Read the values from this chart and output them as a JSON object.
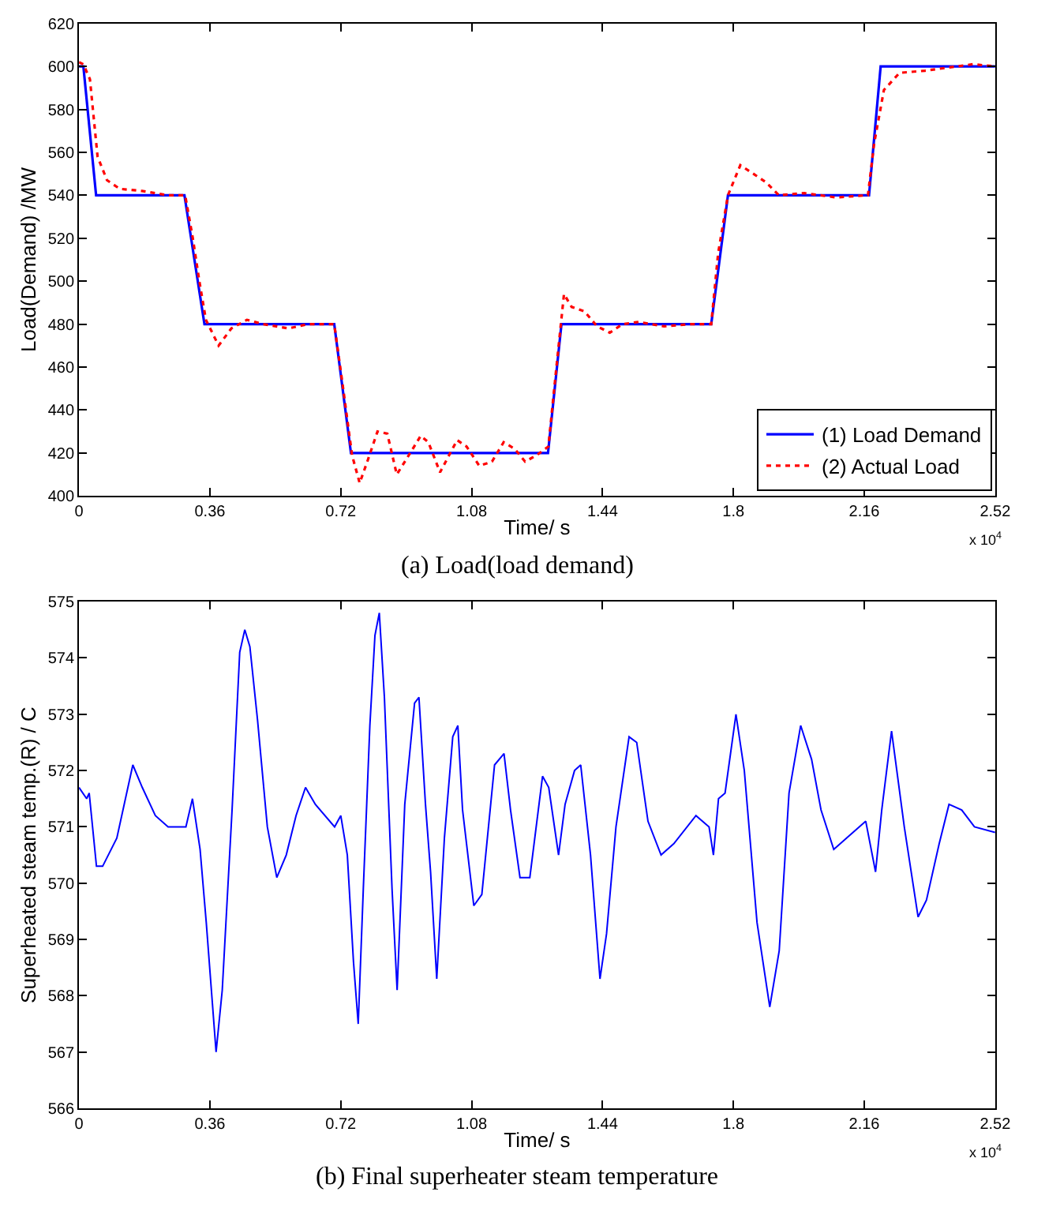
{
  "chart_data": [
    {
      "type": "line",
      "xlabel": "Time/ s",
      "ylabel": "Load(Demand) /MW",
      "annotations": [
        "x 10$^{4}$",
        "(a) Load(load demand)"
      ],
      "legend": "bottom right",
      "xlim": [
        0,
        2.52
      ],
      "xticks": [
        0,
        0.36,
        0.72,
        1.08,
        1.44,
        1.8,
        2.16,
        2.52
      ],
      "ylim": [
        400,
        620
      ],
      "yticks": [
        400,
        420,
        440,
        460,
        480,
        500,
        520,
        540,
        560,
        580,
        600,
        620
      ],
      "series": [
        {
          "name": "(1) Load Demand",
          "color": "#0000ff",
          "line_style": "solid",
          "x": [
            0,
            0.012,
            0.047,
            0.29,
            0.345,
            0.702,
            0.748,
            1.29,
            1.327,
            1.739,
            1.785,
            2.173,
            2.205,
            2.52
          ],
          "values": [
            600,
            600,
            540,
            540,
            480,
            480,
            420,
            420,
            480,
            480,
            540,
            540,
            600,
            600
          ]
        },
        {
          "name": "(2) Actual Load",
          "color": "#ff0000",
          "line_style": "dotted",
          "x": [
            0,
            0.012,
            0.03,
            0.051,
            0.077,
            0.112,
            0.173,
            0.243,
            0.292,
            0.313,
            0.331,
            0.349,
            0.384,
            0.419,
            0.462,
            0.506,
            0.576,
            0.629,
            0.702,
            0.725,
            0.751,
            0.772,
            0.795,
            0.821,
            0.848,
            0.874,
            0.9,
            0.94,
            0.961,
            0.993,
            1.04,
            1.066,
            1.101,
            1.136,
            1.168,
            1.198,
            1.227,
            1.259,
            1.291,
            1.312,
            1.334,
            1.355,
            1.39,
            1.425,
            1.46,
            1.495,
            1.539,
            1.609,
            1.679,
            1.739,
            1.758,
            1.785,
            1.819,
            1.855,
            1.89,
            1.925,
            1.995,
            2.082,
            2.17,
            2.187,
            2.214,
            2.257,
            2.327,
            2.415,
            2.459,
            2.52
          ],
          "values": [
            602,
            601,
            594,
            558,
            547,
            543,
            542,
            540,
            540,
            520,
            500,
            482,
            470,
            478,
            482,
            480,
            478,
            480,
            480,
            452,
            419,
            406,
            417,
            430,
            429,
            410,
            417,
            428,
            425,
            411,
            426,
            423,
            414,
            416,
            425,
            422,
            416,
            419,
            423,
            458,
            494,
            488,
            486,
            479,
            476,
            480,
            481,
            479,
            480,
            480,
            513,
            540,
            554,
            550,
            546,
            540,
            541,
            539,
            540,
            564,
            589,
            597,
            598,
            600,
            601,
            600
          ]
        }
      ]
    },
    {
      "type": "line",
      "xlabel": "Time/ s",
      "ylabel": "Superheated steam temp.(R) / C",
      "annotations": [
        "x 10$^{4}$",
        "(b) Final superheater steam temperature"
      ],
      "xlim": [
        0,
        2.52
      ],
      "xticks": [
        0,
        0.36,
        0.72,
        1.08,
        1.44,
        1.8,
        2.16,
        2.52
      ],
      "ylim": [
        566,
        575
      ],
      "yticks": [
        566,
        567,
        568,
        569,
        570,
        571,
        572,
        573,
        574,
        575
      ],
      "series": [
        {
          "color": "#0000ff",
          "line_style": "solid",
          "x": [
            0,
            0.021,
            0.028,
            0.048,
            0.065,
            0.104,
            0.148,
            0.174,
            0.21,
            0.245,
            0.294,
            0.312,
            0.333,
            0.35,
            0.377,
            0.394,
            0.421,
            0.442,
            0.456,
            0.47,
            0.491,
            0.518,
            0.544,
            0.57,
            0.597,
            0.623,
            0.65,
            0.703,
            0.72,
            0.738,
            0.755,
            0.768,
            0.782,
            0.8,
            0.814,
            0.826,
            0.84,
            0.861,
            0.875,
            0.896,
            0.923,
            0.935,
            0.953,
            0.967,
            0.984,
            1.005,
            1.028,
            1.042,
            1.055,
            1.086,
            1.108,
            1.143,
            1.169,
            1.187,
            1.213,
            1.24,
            1.275,
            1.292,
            1.319,
            1.337,
            1.363,
            1.38,
            1.407,
            1.433,
            1.451,
            1.477,
            1.513,
            1.534,
            1.565,
            1.601,
            1.636,
            1.697,
            1.733,
            1.745,
            1.759,
            1.777,
            1.807,
            1.83,
            1.865,
            1.9,
            1.926,
            1.953,
            1.985,
            2.015,
            2.041,
            2.076,
            2.111,
            2.164,
            2.191,
            2.208,
            2.235,
            2.27,
            2.308,
            2.331,
            2.366,
            2.393,
            2.428,
            2.463,
            2.52
          ],
          "values": [
            571.7,
            571.5,
            571.6,
            570.3,
            570.3,
            570.8,
            572.1,
            571.7,
            571.2,
            571.0,
            571.0,
            571.5,
            570.6,
            569.3,
            567.0,
            568.1,
            571.3,
            574.1,
            574.5,
            574.2,
            572.9,
            571.0,
            570.1,
            570.5,
            571.2,
            571.7,
            571.4,
            571.0,
            571.2,
            570.5,
            568.6,
            567.5,
            569.9,
            572.8,
            574.4,
            574.8,
            573.3,
            569.9,
            568.1,
            571.4,
            573.2,
            573.3,
            571.4,
            570.2,
            568.3,
            570.8,
            572.6,
            572.8,
            571.3,
            569.6,
            569.8,
            572.1,
            572.3,
            571.3,
            570.1,
            570.1,
            571.9,
            571.7,
            570.5,
            571.4,
            572.0,
            572.1,
            570.5,
            568.3,
            569.1,
            571.0,
            572.6,
            572.5,
            571.1,
            570.5,
            570.7,
            571.2,
            571.0,
            570.5,
            571.5,
            571.6,
            573.0,
            572.0,
            569.3,
            567.8,
            568.8,
            571.6,
            572.8,
            572.2,
            571.3,
            570.6,
            570.8,
            571.1,
            570.2,
            571.3,
            572.7,
            571.0,
            569.4,
            569.7,
            570.7,
            571.4,
            571.3,
            571.0,
            570.9
          ]
        }
      ]
    }
  ]
}
